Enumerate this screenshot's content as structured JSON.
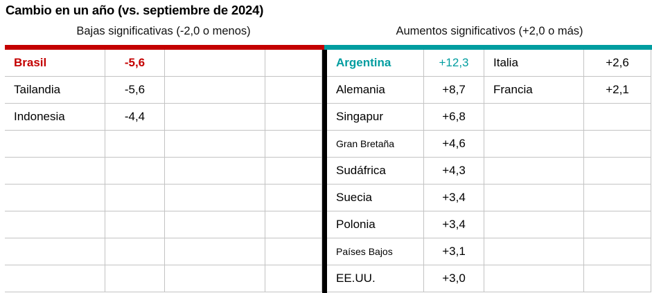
{
  "title": "Cambio en un año (vs. septiembre de 2024)",
  "colors": {
    "negative_accent": "#c40000",
    "positive_accent": "#009da0",
    "grid_line": "#c3c3c3",
    "divider": "#000000"
  },
  "left_section": {
    "subtitle": "Bajas significativas (-2,0 o menos)",
    "rows": [
      {
        "country": "Brasil",
        "value": "-5,6",
        "highlight": true
      },
      {
        "country": "Tailandia",
        "value": "-5,6"
      },
      {
        "country": "Indonesia",
        "value": "-4,4"
      },
      {
        "country": "",
        "value": ""
      },
      {
        "country": "",
        "value": ""
      },
      {
        "country": "",
        "value": ""
      },
      {
        "country": "",
        "value": ""
      },
      {
        "country": "",
        "value": ""
      },
      {
        "country": "",
        "value": ""
      }
    ]
  },
  "right_section": {
    "subtitle": "Aumentos significativos (+2,0 o más)",
    "rows": [
      {
        "country": "Argentina",
        "value": "+12,3",
        "country2": "Italia",
        "value2": "+2,6",
        "highlight": true
      },
      {
        "country": "Alemania",
        "value": "+8,7",
        "country2": "Francia",
        "value2": "+2,1"
      },
      {
        "country": "Singapur",
        "value": "+6,8",
        "country2": "",
        "value2": ""
      },
      {
        "country": "Gran Bretaña",
        "value": "+4,6",
        "country2": "",
        "value2": "",
        "small": true
      },
      {
        "country": "Sudáfrica",
        "value": "+4,3",
        "country2": "",
        "value2": ""
      },
      {
        "country": "Suecia",
        "value": "+3,4",
        "country2": "",
        "value2": ""
      },
      {
        "country": "Polonia",
        "value": "+3,4",
        "country2": "",
        "value2": ""
      },
      {
        "country": "Países Bajos",
        "value": "+3,1",
        "country2": "",
        "value2": "",
        "small": true
      },
      {
        "country": "EE.UU.",
        "value": "+3,0",
        "country2": "",
        "value2": ""
      }
    ]
  },
  "chart_data": {
    "type": "table",
    "title": "Cambio en un año (vs. septiembre de 2024)",
    "groups": [
      {
        "label": "Bajas significativas (-2,0 o menos)",
        "entries": [
          {
            "country": "Brasil",
            "change": -5.6
          },
          {
            "country": "Tailandia",
            "change": -5.6
          },
          {
            "country": "Indonesia",
            "change": -4.4
          }
        ]
      },
      {
        "label": "Aumentos significativos (+2,0 o más)",
        "entries": [
          {
            "country": "Argentina",
            "change": 12.3
          },
          {
            "country": "Alemania",
            "change": 8.7
          },
          {
            "country": "Singapur",
            "change": 6.8
          },
          {
            "country": "Gran Bretaña",
            "change": 4.6
          },
          {
            "country": "Sudáfrica",
            "change": 4.3
          },
          {
            "country": "Suecia",
            "change": 3.4
          },
          {
            "country": "Polonia",
            "change": 3.4
          },
          {
            "country": "Países Bajos",
            "change": 3.1
          },
          {
            "country": "EE.UU.",
            "change": 3.0
          },
          {
            "country": "Italia",
            "change": 2.6
          },
          {
            "country": "Francia",
            "change": 2.1
          }
        ]
      }
    ]
  }
}
